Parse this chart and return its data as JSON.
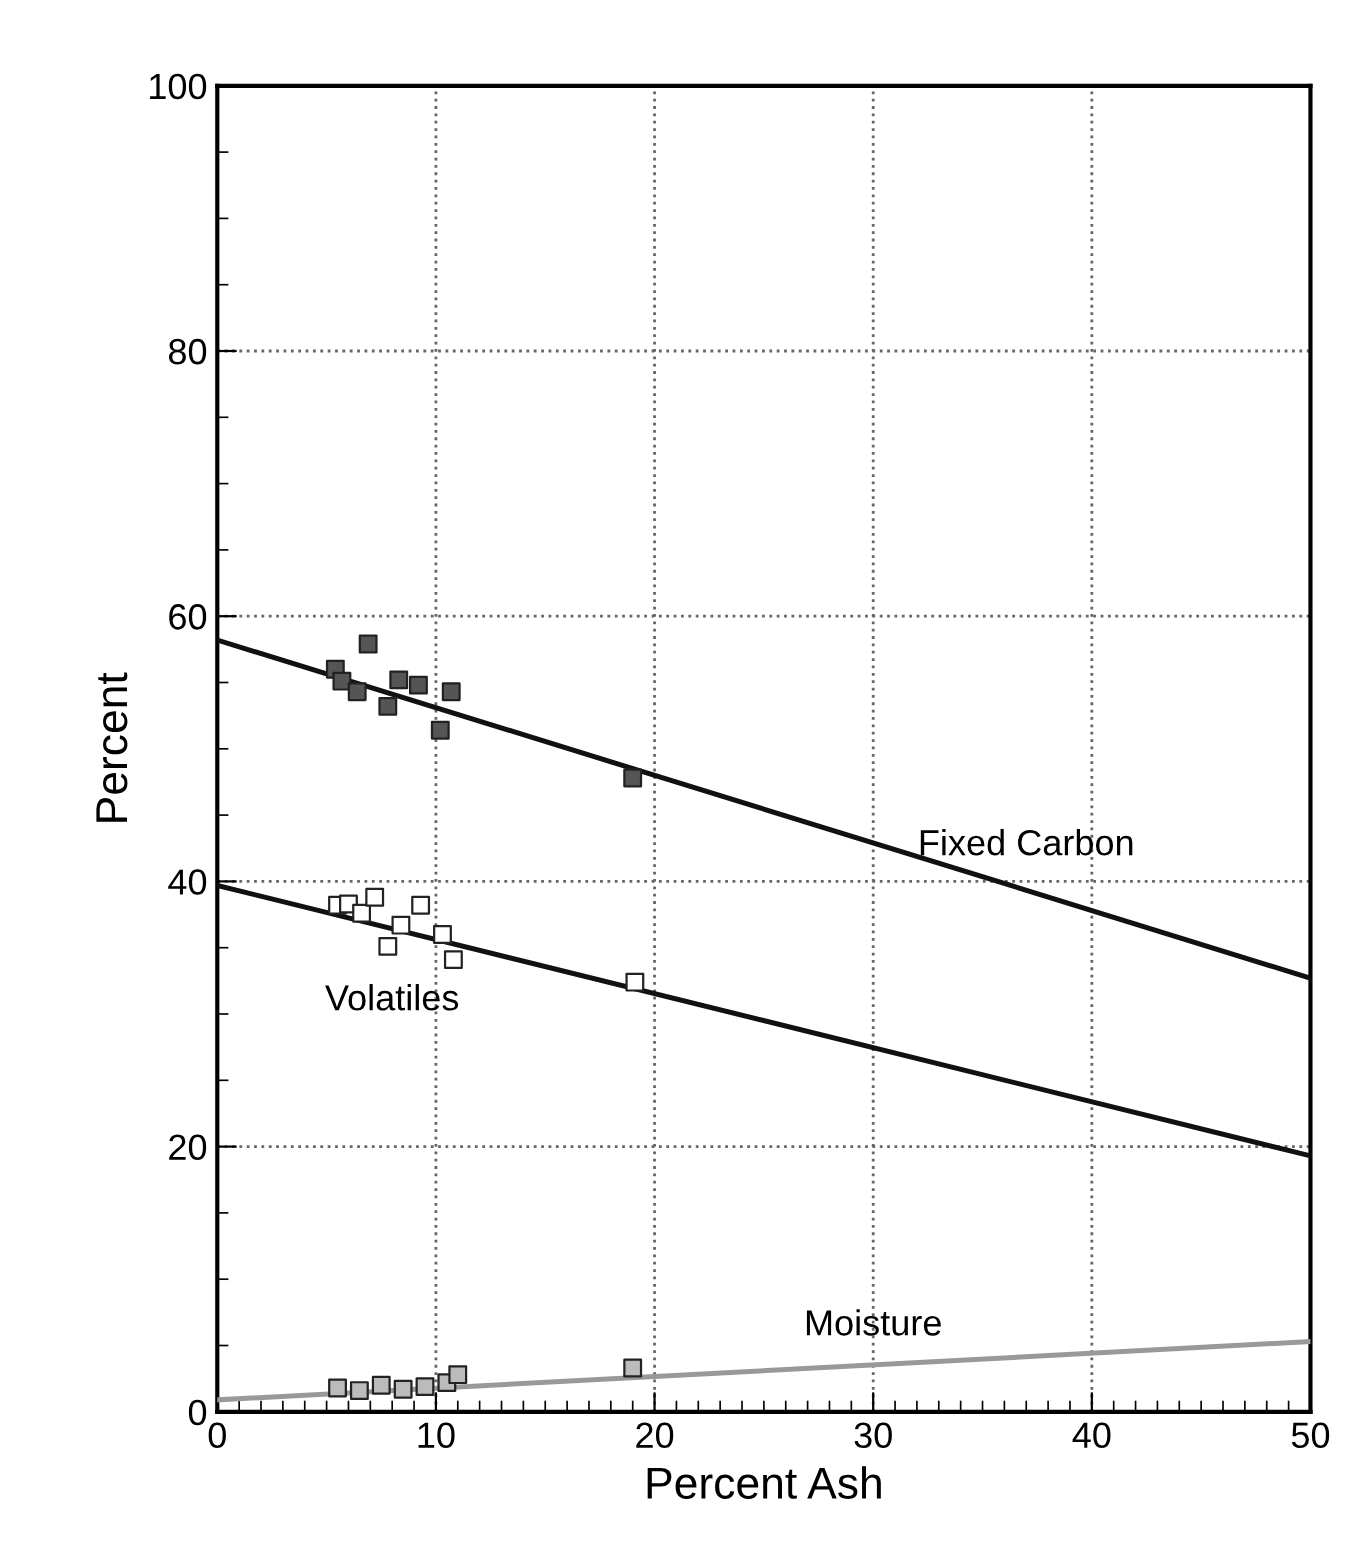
{
  "chart_data": {
    "type": "scatter",
    "xlabel": "Percent Ash",
    "ylabel": "Percent",
    "xlim": [
      0,
      50
    ],
    "ylim": [
      0,
      100
    ],
    "xticks": [
      0,
      10,
      20,
      30,
      40,
      50
    ],
    "yticks": [
      0,
      20,
      40,
      60,
      80,
      100
    ],
    "grid": true,
    "legend": false,
    "series": [
      {
        "marker": "square",
        "color": "#555555",
        "x": [
          5.4,
          6.9,
          5.7,
          6.4,
          7.8,
          8.3,
          9.2,
          10.7,
          10.2,
          19.0
        ],
        "values": [
          56.0,
          57.9,
          55.1,
          54.3,
          53.2,
          55.2,
          54.8,
          54.3,
          51.4,
          47.8
        ]
      },
      {
        "marker": "square",
        "color": "#ffffff",
        "x": [
          5.5,
          6.0,
          6.6,
          7.2,
          9.3,
          8.4,
          7.8,
          10.3,
          10.8,
          19.1
        ],
        "values": [
          38.2,
          38.3,
          37.6,
          38.8,
          38.2,
          36.7,
          35.1,
          36.0,
          34.1,
          32.4
        ]
      },
      {
        "marker": "square",
        "color": "#bbbbbb",
        "x": [
          5.5,
          6.5,
          7.5,
          8.5,
          9.5,
          10.5,
          11.0,
          19.0
        ],
        "values": [
          1.8,
          1.6,
          2.0,
          1.7,
          1.9,
          2.2,
          2.8,
          3.3
        ]
      },
      {
        "type": "line",
        "marker": "none",
        "name": "Fixed Carbon",
        "color": "#111111",
        "x": [
          0,
          50
        ],
        "values": [
          58.2,
          32.7
        ]
      },
      {
        "type": "line",
        "marker": "none",
        "name": "Volatiles",
        "color": "#111111",
        "x": [
          0,
          50
        ],
        "values": [
          39.7,
          19.3
        ]
      },
      {
        "type": "line",
        "marker": "none",
        "name": "Moisture",
        "color": "#999999",
        "x": [
          0,
          50
        ],
        "values": [
          0.9,
          5.3
        ]
      }
    ]
  }
}
